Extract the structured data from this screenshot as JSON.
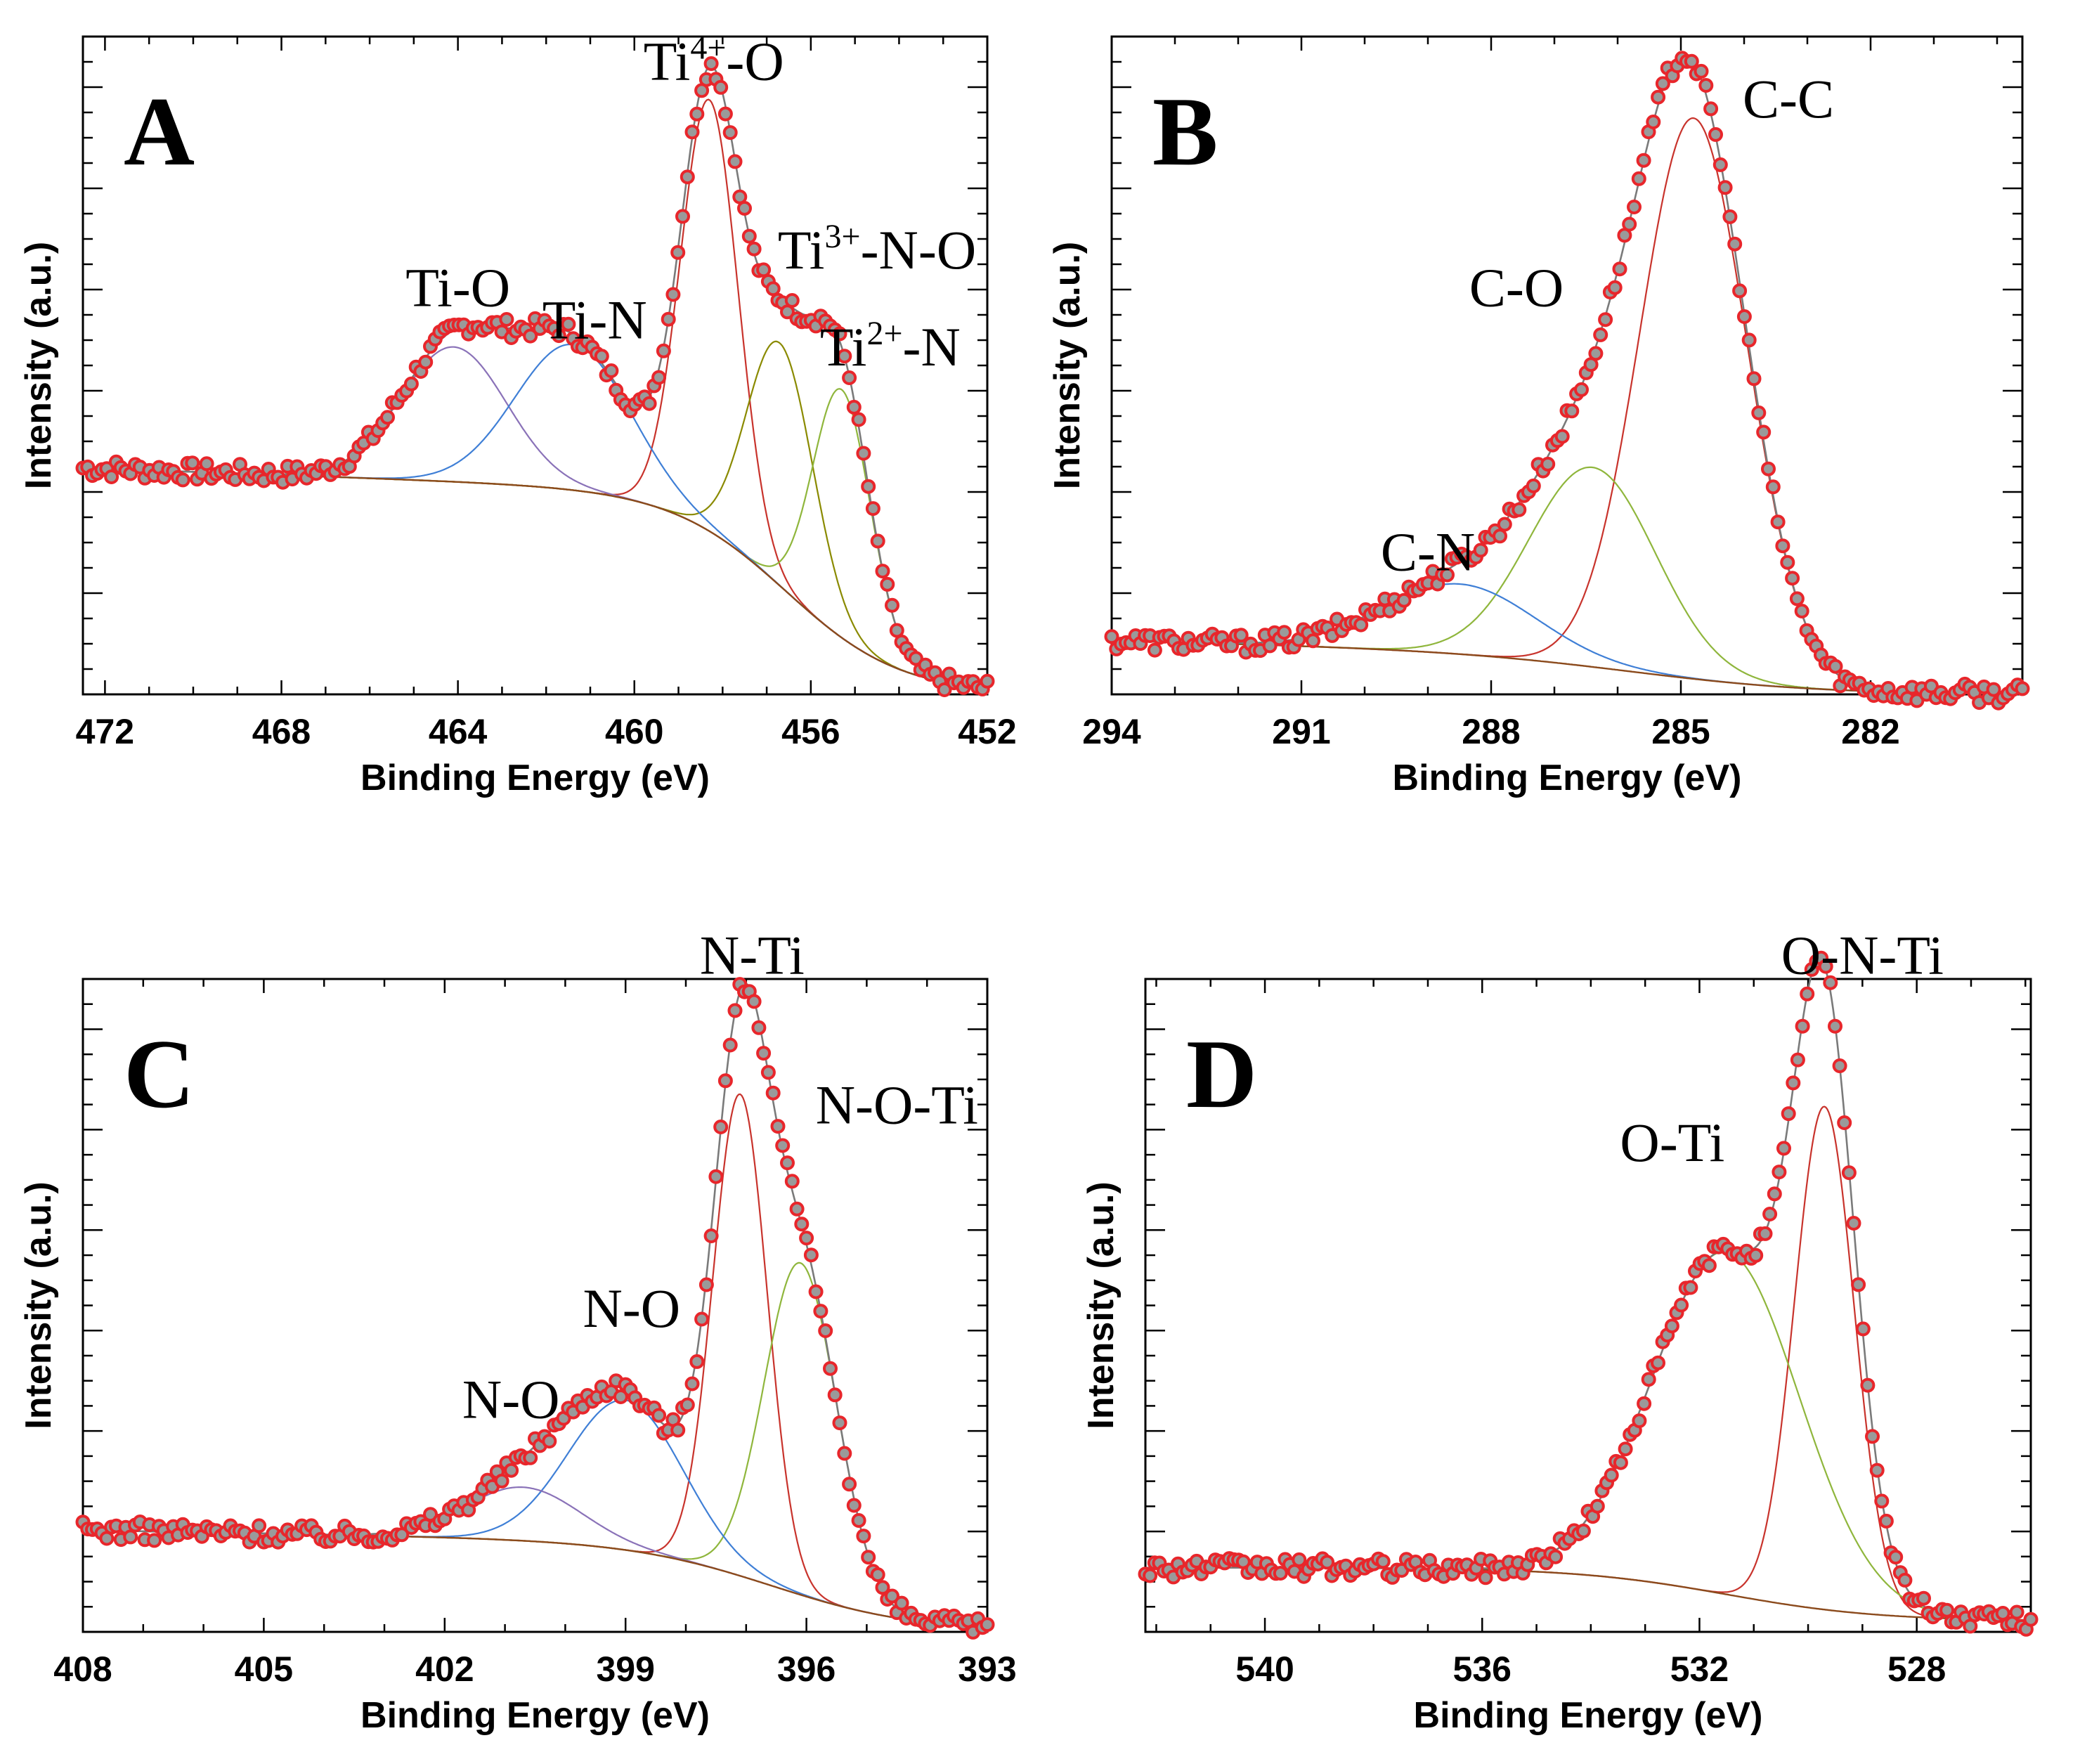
{
  "colors": {
    "data_fill": "#9a9a9a",
    "data_stroke": "#e8262b",
    "envelope": "#7a7a7a",
    "background": "#8b4a1c",
    "red": "#c8332c",
    "green": "#8fb63c",
    "olive": "#8a8a00",
    "blue": "#3f7fd6",
    "purple": "#8a72b8"
  },
  "chart_data": [
    {
      "id": "A",
      "type": "scatter",
      "panel_label": "A",
      "xlabel": "Binding Energy (eV)",
      "ylabel": "Intensity (a.u.)",
      "xlim": [
        472.5,
        452
      ],
      "ylim": [
        0,
        1.22
      ],
      "xticks": [
        472,
        468,
        464,
        460,
        456,
        452
      ],
      "baseline": {
        "start": 0.34,
        "mid": 0.36,
        "end": 0.0,
        "step_center": 456.5,
        "step_width": 1.3,
        "slope": 0.06
      },
      "series": [
        {
          "name": "Ti4+-O",
          "center": 458.3,
          "width": 0.65,
          "height": 0.8,
          "color": "red"
        },
        {
          "name": "Ti3+-N-O",
          "center": 456.7,
          "width": 0.75,
          "height": 0.45,
          "color": "olive"
        },
        {
          "name": "Ti2+-N",
          "center": 455.3,
          "width": 0.65,
          "height": 0.46,
          "color": "green"
        },
        {
          "name": "Ti-O",
          "center": 464.1,
          "width": 1.2,
          "height": 0.25,
          "color": "purple"
        },
        {
          "name": "Ti-N",
          "center": 461.4,
          "width": 1.3,
          "height": 0.27,
          "color": "blue"
        }
      ],
      "annotations": [
        {
          "text": "Ti-O",
          "x": 464.0,
          "y": 0.72
        },
        {
          "text": "Ti-N",
          "x": 460.9,
          "y": 0.66
        },
        {
          "text": "Ti",
          "sup": "4+",
          "suffix": "-O",
          "x": 458.2,
          "y": 1.14
        },
        {
          "text": "Ti",
          "sup": "3+",
          "suffix": "-N-O",
          "x": 454.5,
          "y": 0.79
        },
        {
          "text": "Ti",
          "sup": "2+",
          "suffix": "-N",
          "x": 454.2,
          "y": 0.61
        }
      ]
    },
    {
      "id": "B",
      "type": "scatter",
      "panel_label": "B",
      "xlabel": "Binding Energy (eV)",
      "ylabel": "Intensity (a.u.)",
      "xlim": [
        294,
        279.6
      ],
      "ylim": [
        0,
        1.22
      ],
      "xticks": [
        294,
        291,
        288,
        285,
        282
      ],
      "baseline": {
        "start": 0.06,
        "mid": 0.06,
        "end": 0.0,
        "step_center": 285.5,
        "step_width": 1.5,
        "slope": 0.04
      },
      "series": [
        {
          "name": "C-C",
          "center": 284.8,
          "width": 0.85,
          "height": 1.04,
          "color": "red"
        },
        {
          "name": "C-O",
          "center": 286.4,
          "width": 1.0,
          "height": 0.37,
          "color": "green"
        },
        {
          "name": "C-N",
          "center": 288.5,
          "width": 1.2,
          "height": 0.13,
          "color": "blue"
        }
      ],
      "annotations": [
        {
          "text": "C-C",
          "x": 283.3,
          "y": 1.07
        },
        {
          "text": "C-O",
          "x": 287.6,
          "y": 0.72
        },
        {
          "text": "C-N",
          "x": 289.0,
          "y": 0.23
        }
      ]
    },
    {
      "id": "C",
      "type": "scatter",
      "panel_label": "C",
      "xlabel": "Binding Energy (eV)",
      "ylabel": "Intensity (a.u.)",
      "xlim": [
        408,
        393
      ],
      "ylim": [
        0,
        1.22
      ],
      "xticks": [
        408,
        405,
        402,
        399,
        396,
        393
      ],
      "baseline": {
        "start": 0.17,
        "mid": 0.16,
        "end": 0.0,
        "step_center": 396.5,
        "step_width": 1.2,
        "slope": 0.03
      },
      "series": [
        {
          "name": "N-Ti",
          "center": 397.1,
          "width": 0.45,
          "height": 0.9,
          "color": "red"
        },
        {
          "name": "N-O-Ti",
          "center": 396.1,
          "width": 0.6,
          "height": 0.62,
          "color": "green"
        },
        {
          "name": "N-O",
          "center": 399.0,
          "width": 0.95,
          "height": 0.28,
          "color": "blue"
        },
        {
          "name": "N-O",
          "center": 400.7,
          "width": 0.95,
          "height": 0.1,
          "color": "purple"
        }
      ],
      "annotations": [
        {
          "text": "N-Ti",
          "x": 396.9,
          "y": 1.23
        },
        {
          "text": "N-O-Ti",
          "x": 394.5,
          "y": 0.95
        },
        {
          "text": "N-O",
          "x": 398.9,
          "y": 0.57
        },
        {
          "text": "N-O",
          "x": 400.9,
          "y": 0.4
        }
      ]
    },
    {
      "id": "D",
      "type": "scatter",
      "panel_label": "D",
      "xlabel": "Binding Energy (eV)",
      "ylabel": "Intensity (a.u.)",
      "xlim": [
        542.2,
        525.9
      ],
      "ylim": [
        0,
        1.22
      ],
      "xticks": [
        540,
        536,
        532,
        528
      ],
      "baseline": {
        "start": 0.135,
        "mid": 0.12,
        "end": 0.02,
        "step_center": 531.5,
        "step_width": 1.4,
        "slope": 0.0
      },
      "series": [
        {
          "name": "O-N-Ti",
          "center": 529.7,
          "width": 0.55,
          "height": 0.94,
          "color": "red"
        },
        {
          "name": "O-Ti",
          "center": 531.5,
          "width": 1.35,
          "height": 0.64,
          "color": "green"
        }
      ],
      "annotations": [
        {
          "text": "O-N-Ti",
          "x": 529.0,
          "y": 1.23
        },
        {
          "text": "O-Ti",
          "x": 532.5,
          "y": 0.88
        }
      ]
    }
  ]
}
